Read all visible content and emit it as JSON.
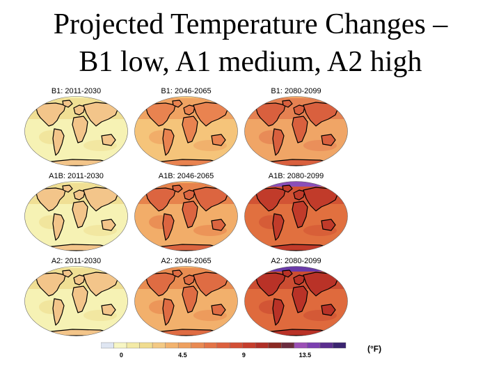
{
  "title": {
    "line1": "Projected Temperature Changes –",
    "line2": "B1 low, A1 medium, A2 high"
  },
  "maps": [
    {
      "label": "B1: 2011-2030",
      "base": "#f6f2b4",
      "warm": "#eedc8e",
      "hot": "#f3c58a",
      "polar": null
    },
    {
      "label": "B1: 2046-2065",
      "base": "#f5c47a",
      "warm": "#ee9e5e",
      "hot": "#e98350",
      "polar": null
    },
    {
      "label": "B1: 2080-2099",
      "base": "#f0a566",
      "warm": "#e37a4d",
      "hot": "#d9603e",
      "polar": null
    },
    {
      "label": "A1B: 2011-2030",
      "base": "#f6f2b4",
      "warm": "#eedc8e",
      "hot": "#f3c58a",
      "polar": null
    },
    {
      "label": "A1B: 2046-2065",
      "base": "#f2ad69",
      "warm": "#e57b48",
      "hot": "#dc6540",
      "polar": null
    },
    {
      "label": "A1B: 2080-2099",
      "base": "#e1703f",
      "warm": "#cf4e32",
      "hot": "#c13b2a",
      "polar": "#8a4fb8"
    },
    {
      "label": "A2: 2011-2030",
      "base": "#f6f2b4",
      "warm": "#eedc8e",
      "hot": "#f3c58a",
      "polar": null
    },
    {
      "label": "A2: 2046-2065",
      "base": "#f2b06c",
      "warm": "#e8864c",
      "hot": "#df6c43",
      "polar": null
    },
    {
      "label": "A2: 2080-2099",
      "base": "#df6a3d",
      "warm": "#c94830",
      "hot": "#b93227",
      "polar": "#6a3aa8"
    }
  ],
  "colorbar": {
    "colors": [
      "#dfe6f2",
      "#f7f6c4",
      "#f3eaa6",
      "#f0dc8f",
      "#f3c984",
      "#f2b36e",
      "#eea05f",
      "#e98a52",
      "#e37447",
      "#dc603e",
      "#d24e35",
      "#c53d2c",
      "#b02f27",
      "#8b2a24",
      "#6b2c3f",
      "#9b4fb6",
      "#7b3fb0",
      "#5a2d8f",
      "#3a2470"
    ],
    "ticks": [
      "0",
      "4.5",
      "9",
      "13.5"
    ],
    "tick_values": [
      0,
      4.5,
      9,
      13.5
    ],
    "min": -1.5,
    "max": 16.5,
    "unit": "(°F)"
  }
}
